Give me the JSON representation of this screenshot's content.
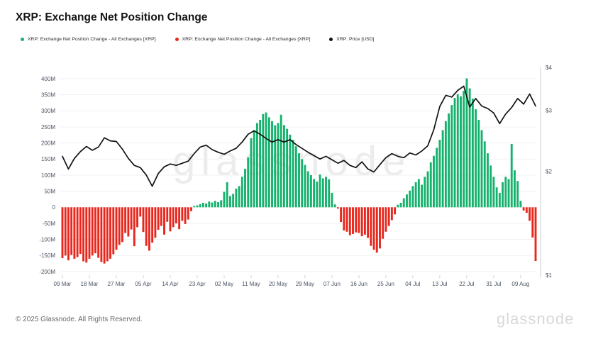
{
  "header": {
    "title": "XRP: Exchange Net Position Change"
  },
  "legend": [
    {
      "label": "XRP: Exchange Net Position Change - All Exchanges [XRP]",
      "color": "#16b26d"
    },
    {
      "label": "XRP: Exchange Net Position Change - All Exchanges [XRP]",
      "color": "#e7271d"
    },
    {
      "label": "XRP: Price [USD]",
      "color": "#111111"
    }
  ],
  "watermark": "glassnode",
  "footer": {
    "copyright": "© 2025 Glassnode. All Rights Reserved.",
    "logo": "glassnode"
  },
  "chart_data": {
    "type": "combo",
    "title": "XRP: Exchange Net Position Change",
    "grid": "horizontal",
    "left_axis": {
      "unit": "XRP (millions)",
      "tick_labels": [
        "400M",
        "350M",
        "300M",
        "250M",
        "200M",
        "150M",
        "100M",
        "50M",
        "0",
        "-50M",
        "-100M",
        "-150M",
        "-200M"
      ],
      "tick_values": [
        400,
        350,
        300,
        250,
        200,
        150,
        100,
        50,
        0,
        -50,
        -100,
        -150,
        -200
      ],
      "range": [
        -200,
        400
      ]
    },
    "right_axis": {
      "unit": "USD",
      "scale": "log",
      "tick_labels": [
        "$4",
        "$3",
        "$2",
        "$1"
      ],
      "tick_values": [
        4,
        3,
        2,
        1
      ],
      "range": [
        1,
        4
      ]
    },
    "x_axis": {
      "start_date": "09 Mar",
      "end_date": "14 Aug",
      "interval_days": 1,
      "tick_labels": [
        "09 Mar",
        "18 Mar",
        "27 Mar",
        "05 Apr",
        "14 Apr",
        "23 Apr",
        "02 May",
        "11 May",
        "20 May",
        "29 May",
        "07 Jun",
        "16 Jun",
        "25 Jun",
        "04 Jul",
        "13 Jul",
        "22 Jul",
        "31 Jul",
        "09 Aug"
      ],
      "tick_indices": [
        0,
        9,
        18,
        27,
        36,
        45,
        54,
        63,
        72,
        81,
        90,
        99,
        108,
        117,
        126,
        135,
        144,
        153
      ]
    },
    "series": [
      {
        "name": "XRP: Exchange Net Position Change - All Exchanges [XRP]",
        "type": "bar",
        "unit": "M XRP",
        "color_positive": "#16b26d",
        "color_negative": "#e7271d",
        "interval_days": 1,
        "values": [
          -158,
          -150,
          -165,
          -148,
          -160,
          -155,
          -145,
          -168,
          -172,
          -160,
          -150,
          -143,
          -157,
          -170,
          -175,
          -168,
          -160,
          -146,
          -132,
          -117,
          -108,
          -80,
          -91,
          -69,
          -121,
          -62,
          -29,
          -77,
          -120,
          -135,
          -110,
          -95,
          -70,
          -58,
          -85,
          -45,
          -75,
          -62,
          -50,
          -68,
          -42,
          -52,
          -38,
          -12,
          4,
          6,
          10,
          14,
          12,
          18,
          15,
          20,
          16,
          22,
          48,
          78,
          35,
          42,
          58,
          66,
          95,
          120,
          155,
          215,
          240,
          262,
          272,
          290,
          295,
          280,
          268,
          255,
          262,
          288,
          256,
          244,
          226,
          210,
          190,
          168,
          150,
          132,
          112,
          100,
          88,
          80,
          102,
          90,
          95,
          87,
          45,
          9,
          -4,
          -46,
          -72,
          -76,
          -87,
          -83,
          -78,
          -80,
          -90,
          -85,
          -95,
          -120,
          -132,
          -141,
          -128,
          -98,
          -76,
          -58,
          -40,
          -22,
          8,
          14,
          28,
          40,
          52,
          66,
          78,
          88,
          70,
          95,
          112,
          140,
          160,
          185,
          210,
          240,
          268,
          292,
          318,
          340,
          352,
          345,
          362,
          401,
          370,
          338,
          305,
          272,
          240,
          205,
          168,
          130,
          95,
          62,
          45,
          78,
          95,
          88,
          197,
          115,
          82,
          20,
          -10,
          -17,
          -42,
          -94,
          -167
        ]
      },
      {
        "name": "XRP: Price [USD]",
        "type": "line",
        "unit": "USD",
        "color": "#121212",
        "interval_days": 2,
        "values": [
          2.21,
          2.03,
          2.18,
          2.28,
          2.36,
          2.3,
          2.35,
          2.5,
          2.45,
          2.44,
          2.32,
          2.18,
          2.08,
          2.05,
          1.95,
          1.81,
          1.97,
          2.06,
          2.1,
          2.08,
          2.11,
          2.14,
          2.25,
          2.35,
          2.38,
          2.31,
          2.27,
          2.24,
          2.29,
          2.33,
          2.43,
          2.56,
          2.62,
          2.56,
          2.49,
          2.43,
          2.47,
          2.43,
          2.47,
          2.39,
          2.33,
          2.27,
          2.22,
          2.17,
          2.21,
          2.16,
          2.11,
          2.15,
          2.08,
          2.05,
          2.13,
          2.03,
          1.99,
          2.09,
          2.19,
          2.25,
          2.21,
          2.19,
          2.26,
          2.23,
          2.29,
          2.37,
          2.64,
          3.08,
          3.32,
          3.28,
          3.43,
          3.53,
          3.07,
          3.25,
          3.09,
          3.04,
          2.95,
          2.75,
          2.93,
          3.06,
          3.25,
          3.13,
          3.35,
          3.09
        ]
      }
    ]
  }
}
